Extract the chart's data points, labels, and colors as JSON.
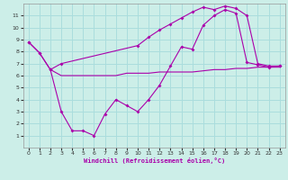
{
  "xlabel": "Windchill (Refroidissement éolien,°C)",
  "background_color": "#cceee8",
  "grid_color": "#aadddd",
  "line_color": "#aa00aa",
  "xlim": [
    -0.5,
    23.5
  ],
  "ylim": [
    0,
    12
  ],
  "xticks": [
    0,
    1,
    2,
    3,
    4,
    5,
    6,
    7,
    8,
    9,
    10,
    11,
    12,
    13,
    14,
    15,
    16,
    17,
    18,
    19,
    20,
    21,
    22,
    23
  ],
  "yticks": [
    1,
    2,
    3,
    4,
    5,
    6,
    7,
    8,
    9,
    10,
    11
  ],
  "line1_x": [
    0,
    1,
    2,
    3,
    10,
    11,
    12,
    13,
    14,
    15,
    16,
    17,
    18,
    19,
    20,
    21,
    22,
    23
  ],
  "line1_y": [
    8.8,
    7.9,
    6.5,
    7.0,
    8.5,
    9.2,
    9.8,
    10.3,
    10.8,
    11.3,
    11.7,
    11.5,
    11.8,
    11.6,
    11.0,
    7.0,
    6.8,
    6.8
  ],
  "line2_x": [
    0,
    1,
    2,
    3,
    4,
    5,
    6,
    7,
    8,
    9,
    10,
    11,
    12,
    13,
    14,
    15,
    16,
    17,
    18,
    19,
    20,
    21,
    22,
    23
  ],
  "line2_y": [
    8.8,
    7.9,
    6.5,
    3.0,
    1.4,
    1.4,
    1.0,
    2.8,
    4.0,
    3.5,
    3.0,
    4.0,
    5.2,
    6.8,
    8.4,
    8.2,
    10.2,
    11.0,
    11.5,
    11.2,
    7.1,
    6.9,
    6.7,
    6.8
  ],
  "line3_x": [
    2,
    3,
    4,
    5,
    6,
    7,
    8,
    9,
    10,
    11,
    12,
    13,
    14,
    15,
    16,
    17,
    18,
    19,
    20,
    21,
    22,
    23
  ],
  "line3_y": [
    6.5,
    6.0,
    6.0,
    6.0,
    6.0,
    6.0,
    6.0,
    6.2,
    6.2,
    6.2,
    6.3,
    6.3,
    6.3,
    6.3,
    6.4,
    6.5,
    6.5,
    6.6,
    6.6,
    6.7,
    6.7,
    6.7
  ]
}
